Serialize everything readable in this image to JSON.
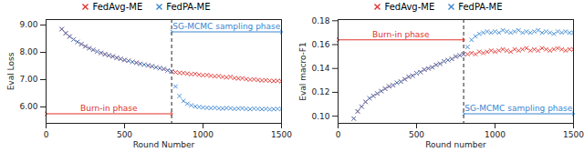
{
  "chart_data": [
    {
      "type": "scatter",
      "x_label": "Round Number",
      "y_label": "Eval Loss",
      "legend": "top",
      "grid": false,
      "xlim": [
        0,
        1500
      ],
      "xticks": [
        0,
        500,
        1000,
        1500
      ],
      "ylim": [
        5.4,
        9.2
      ],
      "yticks": [
        {
          "value": 6,
          "label": "6.00"
        },
        {
          "value": 7,
          "label": "7.00"
        },
        {
          "value": 8,
          "label": "8.00"
        },
        {
          "value": 9,
          "label": "9.00"
        }
      ],
      "x": [
        100,
        125,
        150,
        175,
        200,
        225,
        250,
        275,
        300,
        325,
        350,
        375,
        400,
        425,
        450,
        475,
        500,
        525,
        550,
        575,
        600,
        625,
        650,
        675,
        700,
        725,
        750,
        775,
        800,
        825,
        850,
        875,
        900,
        925,
        950,
        975,
        1000,
        1025,
        1050,
        1075,
        1100,
        1125,
        1150,
        1175,
        1200,
        1225,
        1250,
        1275,
        1300,
        1325,
        1350,
        1375,
        1400,
        1425,
        1450,
        1475,
        1500
      ],
      "series": [
        {
          "name": "FedAvg-ME",
          "color": "#e0312b",
          "marker": "x",
          "values": [
            8.85,
            8.7,
            8.58,
            8.47,
            8.38,
            8.3,
            8.22,
            8.15,
            8.09,
            8.03,
            7.98,
            7.93,
            7.89,
            7.85,
            7.8,
            7.76,
            7.72,
            7.69,
            7.65,
            7.62,
            7.58,
            7.55,
            7.52,
            7.49,
            7.45,
            7.42,
            7.39,
            7.34,
            7.3,
            7.27,
            7.25,
            7.24,
            7.22,
            7.2,
            7.21,
            7.18,
            7.16,
            7.17,
            7.14,
            7.12,
            7.13,
            7.1,
            7.08,
            7.1,
            7.06,
            7.04,
            7.05,
            7.02,
            7.0,
            7.01,
            6.99,
            6.97,
            6.98,
            6.96,
            6.95,
            6.96,
            6.94
          ]
        },
        {
          "name": "FedPA-ME",
          "color": "#3a86d0",
          "marker": "x",
          "values": [
            8.85,
            8.7,
            8.58,
            8.47,
            8.38,
            8.3,
            8.22,
            8.15,
            8.09,
            8.03,
            7.98,
            7.93,
            7.89,
            7.85,
            7.8,
            7.76,
            7.72,
            7.69,
            7.65,
            7.62,
            7.58,
            7.55,
            7.52,
            7.49,
            7.45,
            7.42,
            7.39,
            7.34,
            7.3,
            6.75,
            6.4,
            6.22,
            6.12,
            6.06,
            6.02,
            6.0,
            5.98,
            5.97,
            5.96,
            5.97,
            5.95,
            5.94,
            5.96,
            5.95,
            5.93,
            5.94,
            5.95,
            5.93,
            5.92,
            5.94,
            5.93,
            5.92,
            5.93,
            5.91,
            5.92,
            5.93,
            5.92
          ]
        }
      ],
      "annotations": [
        {
          "text": "Burn-in phase",
          "x": [
            0,
            800
          ],
          "y": 5.75,
          "color": "#e0312b"
        },
        {
          "text": "SG-MCMC sampling phase",
          "x": [
            800,
            1500
          ],
          "y": 8.75,
          "color": "#3a86d0"
        }
      ]
    },
    {
      "type": "scatter",
      "x_label": "Round number",
      "y_label": "Eval macro-F1",
      "legend": "top",
      "grid": false,
      "xlim": [
        0,
        1500
      ],
      "xticks": [
        0,
        500,
        1000,
        1500
      ],
      "ylim": [
        0.094,
        0.181
      ],
      "yticks": [
        {
          "value": 0.1,
          "label": "0.10"
        },
        {
          "value": 0.12,
          "label": "0.12"
        },
        {
          "value": 0.14,
          "label": "0.14"
        },
        {
          "value": 0.16,
          "label": "0.16"
        },
        {
          "value": 0.18,
          "label": "0.18"
        }
      ],
      "x": [
        100,
        125,
        150,
        175,
        200,
        225,
        250,
        275,
        300,
        325,
        350,
        375,
        400,
        425,
        450,
        475,
        500,
        525,
        550,
        575,
        600,
        625,
        650,
        675,
        700,
        725,
        750,
        775,
        800,
        825,
        850,
        875,
        900,
        925,
        950,
        975,
        1000,
        1025,
        1050,
        1075,
        1100,
        1125,
        1150,
        1175,
        1200,
        1225,
        1250,
        1275,
        1300,
        1325,
        1350,
        1375,
        1400,
        1425,
        1450,
        1475,
        1500
      ],
      "series": [
        {
          "name": "FedAvg-ME",
          "color": "#e0312b",
          "marker": "x",
          "values": [
            0.098,
            0.104,
            0.108,
            0.112,
            0.115,
            0.117,
            0.119,
            0.121,
            0.123,
            0.125,
            0.126,
            0.128,
            0.129,
            0.131,
            0.133,
            0.134,
            0.136,
            0.137,
            0.139,
            0.14,
            0.141,
            0.143,
            0.144,
            0.146,
            0.147,
            0.148,
            0.15,
            0.151,
            0.152,
            0.152,
            0.153,
            0.152,
            0.154,
            0.153,
            0.154,
            0.155,
            0.154,
            0.155,
            0.156,
            0.155,
            0.154,
            0.156,
            0.155,
            0.156,
            0.157,
            0.155,
            0.156,
            0.155,
            0.157,
            0.156,
            0.155,
            0.156,
            0.157,
            0.156,
            0.155,
            0.156,
            0.156
          ]
        },
        {
          "name": "FedPA-ME",
          "color": "#3a86d0",
          "marker": "x",
          "values": [
            0.098,
            0.104,
            0.108,
            0.112,
            0.115,
            0.117,
            0.119,
            0.121,
            0.123,
            0.125,
            0.126,
            0.128,
            0.129,
            0.131,
            0.133,
            0.134,
            0.136,
            0.137,
            0.139,
            0.14,
            0.141,
            0.143,
            0.144,
            0.146,
            0.147,
            0.148,
            0.15,
            0.151,
            0.152,
            0.158,
            0.164,
            0.167,
            0.169,
            0.17,
            0.171,
            0.17,
            0.171,
            0.17,
            0.172,
            0.171,
            0.17,
            0.171,
            0.172,
            0.17,
            0.171,
            0.17,
            0.171,
            0.172,
            0.17,
            0.171,
            0.17,
            0.169,
            0.171,
            0.17,
            0.171,
            0.17,
            0.17
          ]
        }
      ],
      "annotations": [
        {
          "text": "Burn-in phase",
          "x": [
            0,
            800
          ],
          "y": 0.164,
          "color": "#e0312b"
        },
        {
          "text": "SG-MCMC sampling phase",
          "x": [
            800,
            1500
          ],
          "y": 0.102,
          "color": "#3a86d0"
        }
      ]
    }
  ]
}
